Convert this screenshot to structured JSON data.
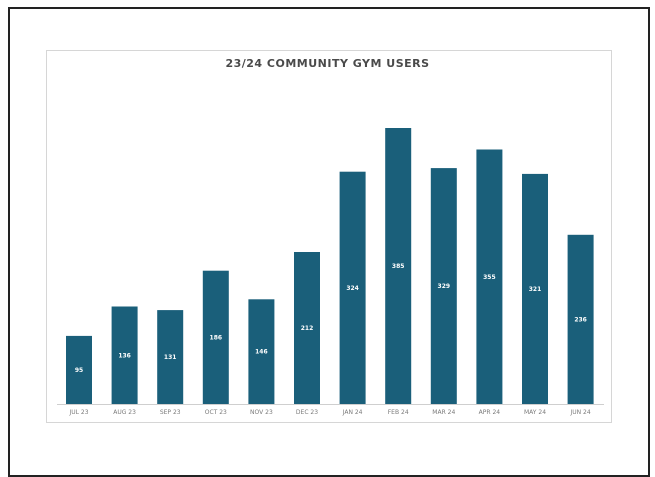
{
  "chart_data": {
    "type": "bar",
    "title": "23/24 COMMUNITY GYM USERS",
    "xlabel": "",
    "ylabel": "",
    "ylim": [
      0,
      385
    ],
    "grid": false,
    "categories": [
      "JUL 23",
      "AUG 23",
      "SEP 23",
      "OCT 23",
      "NOV 23",
      "DEC 23",
      "JAN 24",
      "FEB 24",
      "MAR 24",
      "APR 24",
      "MAY 24",
      "JUN 24"
    ],
    "values": [
      95,
      136,
      131,
      186,
      146,
      212,
      324,
      385,
      329,
      355,
      321,
      236
    ],
    "bar_color": "#1a5f7a",
    "label_color": "#ffffff"
  }
}
